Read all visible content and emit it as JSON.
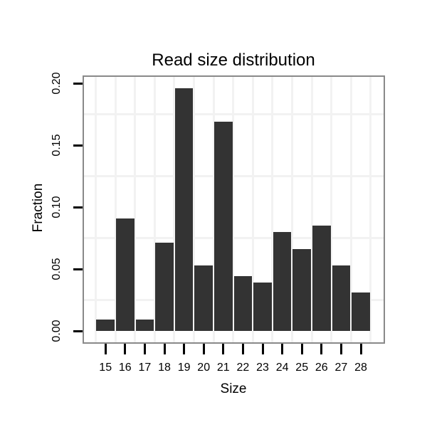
{
  "chart_data": {
    "type": "bar",
    "title": "Read size distribution",
    "xlabel": "Size",
    "ylabel": "Fraction",
    "categories": [
      "15",
      "16",
      "17",
      "18",
      "19",
      "20",
      "21",
      "22",
      "23",
      "24",
      "25",
      "26",
      "27",
      "28"
    ],
    "values": [
      0.009,
      0.091,
      0.009,
      0.071,
      0.196,
      0.053,
      0.169,
      0.044,
      0.039,
      0.08,
      0.066,
      0.085,
      0.053,
      0.031
    ],
    "ytick_values": [
      0.0,
      0.05,
      0.1,
      0.15,
      0.2
    ],
    "ytick_labels": [
      "0.00",
      "0.05",
      "0.10",
      "0.15",
      "0.20"
    ],
    "ylim": [
      0,
      0.205
    ],
    "grid": "faint gridlines between ticks and between categories",
    "legend": "none",
    "colors": {
      "bar": "#333333",
      "panel_border": "#898989",
      "gridline": "#f2f2f2",
      "tick": "#000000",
      "text": "#000000",
      "background": "#ffffff"
    }
  }
}
